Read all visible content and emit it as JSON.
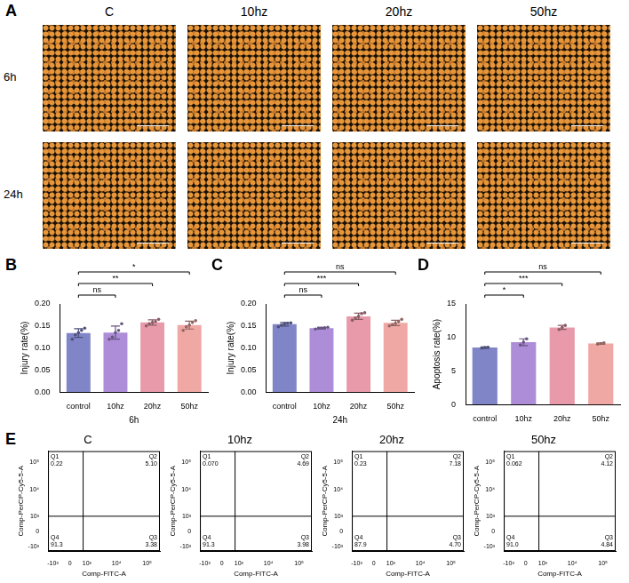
{
  "image_panel": {
    "letter": "A",
    "column_labels": [
      "C",
      "10hz",
      "20hz",
      "50hz"
    ],
    "row_labels": [
      "6h",
      "24h"
    ]
  },
  "chart_data": [
    {
      "letter": "B",
      "type": "bar",
      "categories": [
        "control",
        "10hz",
        "20hz",
        "50hz"
      ],
      "values": [
        0.134,
        0.135,
        0.158,
        0.152
      ],
      "error": [
        0.01,
        0.015,
        0.006,
        0.009
      ],
      "points": [
        [
          0.12,
          0.13,
          0.135,
          0.14,
          0.145
        ],
        [
          0.12,
          0.125,
          0.135,
          0.14,
          0.155
        ],
        [
          0.15,
          0.155,
          0.158,
          0.16,
          0.165
        ],
        [
          0.14,
          0.148,
          0.152,
          0.158,
          0.162
        ]
      ],
      "colors": [
        "#8085c8",
        "#ad8dd8",
        "#e89aaa",
        "#f0a8a4"
      ],
      "x_label": "6h",
      "y_label": "Injury rate(%)",
      "ylim": [
        0,
        0.2
      ],
      "yticks": [
        {
          "value": 0,
          "label": "0.00"
        },
        {
          "value": 0.05,
          "label": "0.05"
        },
        {
          "value": 0.1,
          "label": "0.10"
        },
        {
          "value": 0.15,
          "label": "0.15"
        },
        {
          "value": 0.2,
          "label": "0.20"
        }
      ],
      "grid": false,
      "annotations": [
        {
          "from": "control",
          "to": "10hz",
          "text": "ns"
        },
        {
          "from": "control",
          "to": "20hz",
          "text": "**"
        },
        {
          "from": "control",
          "to": "50hz",
          "text": "*"
        }
      ]
    },
    {
      "letter": "C",
      "type": "bar",
      "categories": [
        "control",
        "10hz",
        "20hz",
        "50hz"
      ],
      "values": [
        0.154,
        0.145,
        0.172,
        0.157
      ],
      "error": [
        0.004,
        0.002,
        0.007,
        0.006
      ],
      "points": [
        [
          0.148,
          0.152,
          0.155,
          0.156,
          0.157
        ],
        [
          0.143,
          0.145,
          0.145,
          0.146,
          0.147
        ],
        [
          0.163,
          0.168,
          0.172,
          0.178,
          0.18
        ],
        [
          0.15,
          0.153,
          0.156,
          0.16,
          0.165
        ]
      ],
      "colors": [
        "#8085c8",
        "#ad8dd8",
        "#e89aaa",
        "#f0a8a4"
      ],
      "x_label": "24h",
      "y_label": "Injury rate(%)",
      "ylim": [
        0,
        0.2
      ],
      "yticks": [
        {
          "value": 0,
          "label": "0.00"
        },
        {
          "value": 0.05,
          "label": "0.05"
        },
        {
          "value": 0.1,
          "label": "0.10"
        },
        {
          "value": 0.15,
          "label": "0.15"
        },
        {
          "value": 0.2,
          "label": "0.20"
        }
      ],
      "grid": false,
      "annotations": [
        {
          "from": "control",
          "to": "10hz",
          "text": "ns"
        },
        {
          "from": "control",
          "to": "20hz",
          "text": "***"
        },
        {
          "from": "control",
          "to": "50hz",
          "text": "ns"
        }
      ]
    },
    {
      "letter": "D",
      "type": "bar",
      "categories": [
        "control",
        "10hz",
        "20hz",
        "50hz"
      ],
      "values": [
        8.5,
        9.3,
        11.5,
        9.1
      ],
      "error": [
        0.1,
        0.5,
        0.3,
        0.1
      ],
      "points": [
        [
          8.4,
          8.5,
          8.55
        ],
        [
          8.9,
          9.3,
          9.8
        ],
        [
          11.2,
          11.5,
          11.8
        ],
        [
          9.0,
          9.1,
          9.2
        ]
      ],
      "colors": [
        "#8085c8",
        "#ad8dd8",
        "#e89aaa",
        "#f0a8a4"
      ],
      "y_label": "Apoptosis rate(%)",
      "ylim": [
        0,
        15
      ],
      "yticks": [
        0,
        5,
        10,
        15
      ],
      "grid": false,
      "annotations": [
        {
          "from": "control",
          "to": "10hz",
          "text": "*"
        },
        {
          "from": "control",
          "to": "20hz",
          "text": "***"
        },
        {
          "from": "control",
          "to": "50hz",
          "text": "ns"
        }
      ]
    },
    {
      "letter": "E",
      "type": "scatter",
      "title": "C",
      "x_label": "Comp-FITC-A",
      "y_label": "Comp-PerCP-Cy5-5-A",
      "xlim": [
        -1500,
        262144
      ],
      "ylim": [
        -1500,
        262144
      ],
      "xticks": [
        {
          "value": -1000,
          "label": "-10³"
        },
        0,
        {
          "value": 1000,
          "label": "10³"
        },
        {
          "value": 10000,
          "label": "10⁴"
        },
        {
          "value": 100000,
          "label": "10⁵"
        }
      ],
      "yticks": [
        {
          "value": -1000,
          "label": "-10³"
        },
        0,
        {
          "value": 1000,
          "label": "10³"
        },
        {
          "value": 10000,
          "label": "10⁴"
        },
        {
          "value": 100000,
          "label": "10⁵"
        }
      ],
      "gate": {
        "x": 700,
        "y": 1000
      },
      "quadrants": [
        "Q1",
        "Q2",
        "Q3",
        "Q4"
      ],
      "values": [
        0.22,
        5.1,
        3.38,
        91.3
      ],
      "value_labels": [
        "0.22",
        "5.10",
        "3.38",
        "91.3"
      ],
      "grid": false
    },
    {
      "type": "scatter",
      "title": "10hz",
      "x_label": "Comp-FITC-A",
      "y_label": "Comp-PerCP-Cy5-5-A",
      "xlim": [
        -1500,
        262144
      ],
      "ylim": [
        -1500,
        262144
      ],
      "xticks": [
        {
          "value": -1000,
          "label": "-10³"
        },
        0,
        {
          "value": 1000,
          "label": "10³"
        },
        {
          "value": 10000,
          "label": "10⁴"
        },
        {
          "value": 100000,
          "label": "10⁵"
        }
      ],
      "yticks": [
        {
          "value": -1000,
          "label": "-10³"
        },
        0,
        {
          "value": 1000,
          "label": "10³"
        },
        {
          "value": 10000,
          "label": "10⁴"
        },
        {
          "value": 100000,
          "label": "10⁵"
        }
      ],
      "gate": {
        "x": 700,
        "y": 1000
      },
      "quadrants": [
        "Q1",
        "Q2",
        "Q3",
        "Q4"
      ],
      "values": [
        0.07,
        4.69,
        3.98,
        91.3
      ],
      "value_labels": [
        "0.070",
        "4.69",
        "3.98",
        "91.3"
      ],
      "grid": false
    },
    {
      "type": "scatter",
      "title": "20hz",
      "x_label": "Comp-FITC-A",
      "y_label": "Comp-PerCP-Cy5-5-A",
      "xlim": [
        -1500,
        262144
      ],
      "ylim": [
        -1500,
        262144
      ],
      "xticks": [
        {
          "value": -1000,
          "label": "-10³"
        },
        0,
        {
          "value": 1000,
          "label": "10³"
        },
        {
          "value": 10000,
          "label": "10⁴"
        },
        {
          "value": 100000,
          "label": "10⁵"
        }
      ],
      "yticks": [
        {
          "value": -1000,
          "label": "-10³"
        },
        0,
        {
          "value": 1000,
          "label": "10³"
        },
        {
          "value": 10000,
          "label": "10⁴"
        },
        {
          "value": 100000,
          "label": "10⁵"
        }
      ],
      "gate": {
        "x": 700,
        "y": 1000
      },
      "quadrants": [
        "Q1",
        "Q2",
        "Q3",
        "Q4"
      ],
      "values": [
        0.23,
        7.18,
        4.7,
        87.9
      ],
      "value_labels": [
        "0.23",
        "7.18",
        "4.70",
        "87.9"
      ],
      "grid": false
    },
    {
      "type": "scatter",
      "title": "50hz",
      "x_label": "Comp-FITC-A",
      "y_label": "Comp-PerCP-Cy5-5-A",
      "xlim": [
        -1500,
        262144
      ],
      "ylim": [
        -1500,
        262144
      ],
      "xticks": [
        {
          "value": -1000,
          "label": "-10³"
        },
        0,
        {
          "value": 1000,
          "label": "10³"
        },
        {
          "value": 10000,
          "label": "10⁴"
        },
        {
          "value": 100000,
          "label": "10⁵"
        }
      ],
      "yticks": [
        {
          "value": -1000,
          "label": "-10³"
        },
        0,
        {
          "value": 1000,
          "label": "10³"
        },
        {
          "value": 10000,
          "label": "10⁴"
        },
        {
          "value": 100000,
          "label": "10⁵"
        }
      ],
      "gate": {
        "x": 700,
        "y": 1000
      },
      "quadrants": [
        "Q1",
        "Q2",
        "Q3",
        "Q4"
      ],
      "values": [
        0.062,
        4.12,
        4.84,
        91.0
      ],
      "value_labels": [
        "0.062",
        "4.12",
        "4.84",
        "91.0"
      ],
      "grid": false
    }
  ]
}
